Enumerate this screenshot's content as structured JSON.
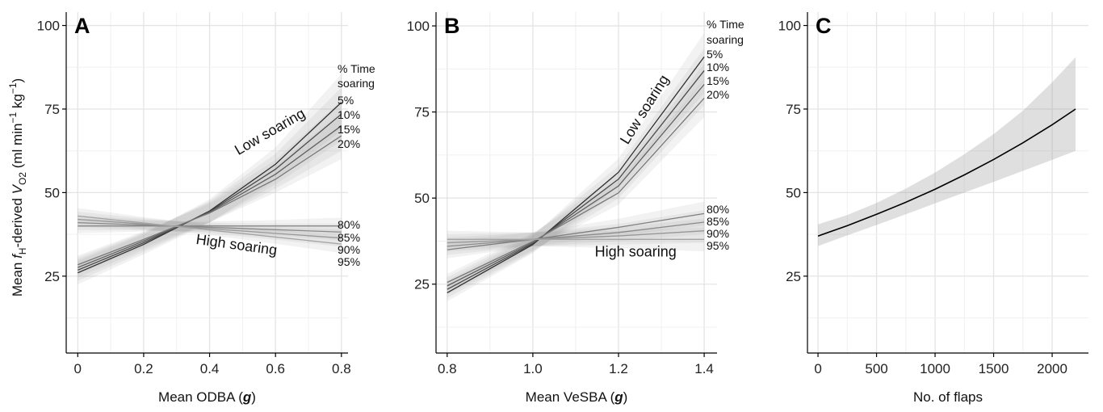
{
  "ylabel": {
    "pre": "Mean ",
    "f": "f",
    "fsub": "H",
    "mid": "-derived ",
    "v": "V",
    "vsub": "O2",
    "unit_open": " (ml min",
    "unit_exp1": "−1",
    "unit_mid": " kg",
    "unit_exp2": "−1",
    "unit_close": ")"
  },
  "chart_data": [
    {
      "panel": "A",
      "type": "line",
      "xlabel_text": "Mean ODBA (",
      "xlabel_unit": "g",
      "xlabel_close": ")",
      "x_ticks": [
        "0",
        "0.2",
        "0.4",
        "0.6",
        "0.8"
      ],
      "y_ticks": [
        "25",
        "50",
        "75",
        "100"
      ],
      "xlim": [
        -0.035,
        0.82
      ],
      "ylim": [
        2,
        104
      ],
      "x_grid": [
        0,
        0.1,
        0.2,
        0.3,
        0.4,
        0.5,
        0.6,
        0.7,
        0.8
      ],
      "y_grid": [
        12.5,
        25,
        37.5,
        50,
        62.5,
        75,
        87.5,
        100
      ],
      "legend_title": [
        "% Time",
        "soaring"
      ],
      "group_labels": [
        {
          "text": "Low soaring",
          "at": [
            0.59,
            67
          ],
          "angle": -30
        },
        {
          "text": "High soaring",
          "at": [
            0.48,
            33
          ],
          "angle": 8
        }
      ],
      "x": [
        0,
        0.2,
        0.4,
        0.6,
        0.8
      ],
      "series": [
        {
          "name": "5%",
          "values": [
            26.0,
            34.5,
            44.5,
            58.5,
            77.0
          ],
          "band": [
            3.5,
            3.0,
            3.5,
            5.0,
            8.5
          ],
          "color": "#2f2f2f"
        },
        {
          "name": "10%",
          "values": [
            26.8,
            35.0,
            44.3,
            57.0,
            73.5
          ],
          "band": [
            3.2,
            2.8,
            3.2,
            4.6,
            8.0
          ],
          "color": "#4a4a4a"
        },
        {
          "name": "15%",
          "values": [
            27.6,
            35.5,
            44.1,
            55.5,
            70.0
          ],
          "band": [
            3.0,
            2.6,
            3.0,
            4.3,
            7.5
          ],
          "color": "#606060"
        },
        {
          "name": "20%",
          "values": [
            28.4,
            36.0,
            43.9,
            54.0,
            67.0
          ],
          "band": [
            2.8,
            2.4,
            2.8,
            4.0,
            7.0
          ],
          "color": "#777777"
        },
        {
          "name": "80%",
          "values": [
            40.0,
            40.0,
            40.0,
            40.0,
            40.0
          ],
          "band": [
            2.2,
            1.6,
            1.4,
            1.8,
            2.5
          ],
          "color": "#7e7e7e"
        },
        {
          "name": "85%",
          "values": [
            41.0,
            40.3,
            39.6,
            38.9,
            38.2
          ],
          "band": [
            2.2,
            1.6,
            1.4,
            1.8,
            2.5
          ],
          "color": "#8a8a8a"
        },
        {
          "name": "90%",
          "values": [
            42.0,
            40.6,
            39.2,
            37.8,
            36.4
          ],
          "band": [
            2.3,
            1.7,
            1.4,
            1.9,
            2.6
          ],
          "color": "#979797"
        },
        {
          "name": "95%",
          "values": [
            43.0,
            40.9,
            38.8,
            36.7,
            34.6
          ],
          "band": [
            2.4,
            1.8,
            1.5,
            2.0,
            2.7
          ],
          "color": "#a3a3a3"
        }
      ]
    },
    {
      "panel": "B",
      "type": "line",
      "xlabel_text": "Mean VeSBA (",
      "xlabel_unit": "g",
      "xlabel_close": ")",
      "x_ticks": [
        "0.8",
        "1.0",
        "1.2",
        "1.4"
      ],
      "y_ticks": [
        "25",
        "50",
        "75",
        "100"
      ],
      "xlim": [
        0.774,
        1.43
      ],
      "ylim": [
        5,
        104
      ],
      "x_grid": [
        0.8,
        0.9,
        1.0,
        1.1,
        1.2,
        1.3,
        1.4
      ],
      "y_grid": [
        12.5,
        25,
        37.5,
        50,
        62.5,
        75,
        87.5,
        100
      ],
      "legend_title": [
        "% Time",
        "soaring"
      ],
      "group_labels": [
        {
          "text": "Low soaring",
          "at": [
            1.27,
            75
          ],
          "angle": -58
        },
        {
          "text": "High soaring",
          "at": [
            1.24,
            33
          ],
          "angle": 0
        }
      ],
      "x": [
        0.8,
        1.0,
        1.2,
        1.4
      ],
      "series": [
        {
          "name": "5%",
          "values": [
            22.5,
            36.5,
            57.5,
            91.0
          ],
          "band": [
            2.5,
            2.5,
            4.0,
            7.0
          ],
          "color": "#2f2f2f"
        },
        {
          "name": "10%",
          "values": [
            23.5,
            36.8,
            55.5,
            87.0
          ],
          "band": [
            2.5,
            2.5,
            3.8,
            6.5
          ],
          "color": "#4a4a4a"
        },
        {
          "name": "15%",
          "values": [
            24.5,
            37.1,
            53.5,
            83.0
          ],
          "band": [
            2.5,
            2.5,
            3.6,
            6.0
          ],
          "color": "#606060"
        },
        {
          "name": "20%",
          "values": [
            25.5,
            37.4,
            51.5,
            79.0
          ],
          "band": [
            2.5,
            2.5,
            3.4,
            5.5
          ],
          "color": "#777777"
        },
        {
          "name": "80%",
          "values": [
            35.0,
            38.0,
            41.5,
            45.5
          ],
          "band": [
            2.5,
            2.0,
            2.5,
            3.5
          ],
          "color": "#7e7e7e"
        },
        {
          "name": "85%",
          "values": [
            36.0,
            38.0,
            40.0,
            43.0
          ],
          "band": [
            2.5,
            2.0,
            2.5,
            3.5
          ],
          "color": "#8a8a8a"
        },
        {
          "name": "90%",
          "values": [
            37.0,
            38.0,
            39.0,
            40.5
          ],
          "band": [
            2.5,
            2.0,
            2.5,
            3.5
          ],
          "color": "#979797"
        },
        {
          "name": "95%",
          "values": [
            38.0,
            38.0,
            38.0,
            38.0
          ],
          "band": [
            2.5,
            2.0,
            2.5,
            3.5
          ],
          "color": "#a3a3a3"
        }
      ]
    },
    {
      "panel": "C",
      "type": "line",
      "xlabel_text": "No. of flaps",
      "xlabel_unit": "",
      "xlabel_close": "",
      "x_ticks": [
        "0",
        "500",
        "1000",
        "1500",
        "2000"
      ],
      "y_ticks": [
        "25",
        "50",
        "75",
        "100"
      ],
      "xlim": [
        -90,
        2310
      ],
      "ylim": [
        2,
        104
      ],
      "x_grid": [
        0,
        250,
        500,
        750,
        1000,
        1250,
        1500,
        1750,
        2000
      ],
      "y_grid": [
        12.5,
        25,
        37.5,
        50,
        62.5,
        75,
        87.5,
        100
      ],
      "x": [
        0,
        250,
        500,
        750,
        1000,
        1250,
        1500,
        1750,
        2000,
        2200
      ],
      "series": [
        {
          "values": [
            37.0,
            40.1,
            43.5,
            47.1,
            51.0,
            55.3,
            59.9,
            64.9,
            70.3,
            75.0
          ],
          "lower": [
            34.0,
            37.2,
            40.3,
            43.5,
            46.8,
            50.0,
            53.2,
            56.5,
            59.8,
            62.5
          ],
          "upper": [
            40.5,
            43.3,
            46.9,
            51.2,
            56.0,
            61.5,
            67.5,
            74.5,
            83.0,
            90.5
          ],
          "color": "#000000"
        }
      ]
    }
  ]
}
